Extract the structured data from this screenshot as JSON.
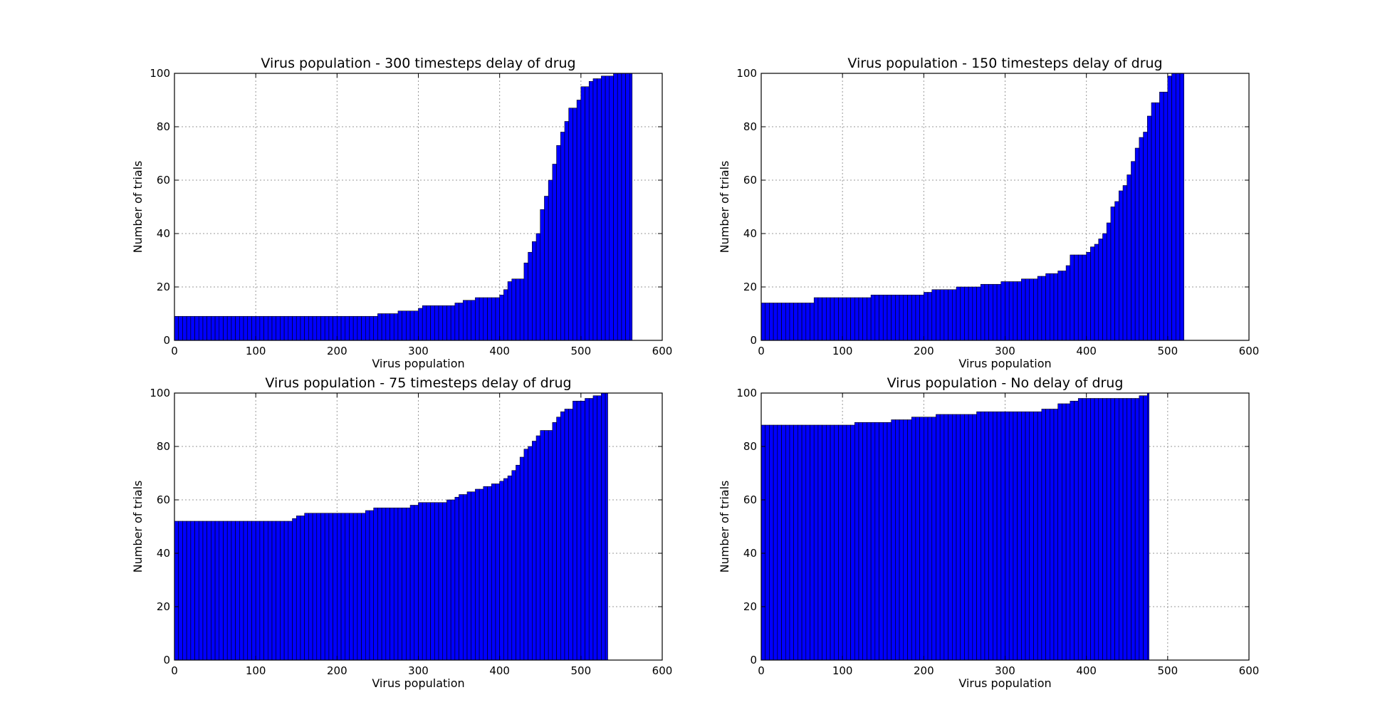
{
  "colors": {
    "bar_fill": "#0000ff",
    "bar_edge": "#000000",
    "grid": "#999999",
    "background": "#ffffff"
  },
  "chart_data": [
    {
      "type": "bar",
      "title": "Virus population - 300 timesteps delay of drug",
      "xlabel": "Virus population",
      "ylabel": "Number of trials",
      "xlim": [
        0,
        600
      ],
      "ylim": [
        0,
        100
      ],
      "xticks": [
        0,
        100,
        200,
        300,
        400,
        500,
        600
      ],
      "yticks": [
        0,
        20,
        40,
        60,
        80,
        100
      ],
      "grid": true,
      "steps": [
        [
          0,
          9
        ],
        [
          250,
          10
        ],
        [
          275,
          11
        ],
        [
          298,
          12
        ],
        [
          305,
          13
        ],
        [
          345,
          14
        ],
        [
          355,
          15
        ],
        [
          370,
          16
        ],
        [
          398,
          17
        ],
        [
          403,
          19
        ],
        [
          408,
          22
        ],
        [
          413,
          23
        ],
        [
          430,
          29
        ],
        [
          435,
          33
        ],
        [
          440,
          37
        ],
        [
          445,
          40
        ],
        [
          450,
          49
        ],
        [
          455,
          54
        ],
        [
          460,
          60
        ],
        [
          465,
          66
        ],
        [
          470,
          73
        ],
        [
          475,
          78
        ],
        [
          480,
          82
        ],
        [
          485,
          87
        ],
        [
          495,
          90
        ],
        [
          500,
          95
        ],
        [
          510,
          97
        ],
        [
          515,
          98
        ],
        [
          525,
          99
        ],
        [
          540,
          100
        ]
      ],
      "x_end": 563
    },
    {
      "type": "bar",
      "title": "Virus population - 150 timesteps delay of drug",
      "xlabel": "Virus population",
      "ylabel": "Number of trials",
      "xlim": [
        0,
        600
      ],
      "ylim": [
        0,
        100
      ],
      "xticks": [
        0,
        100,
        200,
        300,
        400,
        500,
        600
      ],
      "yticks": [
        0,
        20,
        40,
        60,
        80,
        100
      ],
      "grid": true,
      "steps": [
        [
          0,
          14
        ],
        [
          62,
          16
        ],
        [
          135,
          17
        ],
        [
          197,
          18
        ],
        [
          207,
          19
        ],
        [
          240,
          20
        ],
        [
          270,
          21
        ],
        [
          295,
          22
        ],
        [
          320,
          23
        ],
        [
          340,
          24
        ],
        [
          350,
          25
        ],
        [
          365,
          26
        ],
        [
          375,
          28
        ],
        [
          380,
          32
        ],
        [
          400,
          33
        ],
        [
          405,
          35
        ],
        [
          410,
          36
        ],
        [
          415,
          38
        ],
        [
          420,
          40
        ],
        [
          425,
          44
        ],
        [
          430,
          50
        ],
        [
          435,
          52
        ],
        [
          440,
          56
        ],
        [
          445,
          58
        ],
        [
          450,
          62
        ],
        [
          455,
          67
        ],
        [
          460,
          72
        ],
        [
          465,
          76
        ],
        [
          470,
          78
        ],
        [
          475,
          84
        ],
        [
          480,
          89
        ],
        [
          490,
          93
        ],
        [
          500,
          99
        ],
        [
          505,
          100
        ]
      ],
      "x_end": 520
    },
    {
      "type": "bar",
      "title": "Virus population - 75 timesteps delay of drug",
      "xlabel": "Virus population",
      "ylabel": "Number of trials",
      "xlim": [
        0,
        600
      ],
      "ylim": [
        0,
        100
      ],
      "xticks": [
        0,
        100,
        200,
        300,
        400,
        500,
        600
      ],
      "yticks": [
        0,
        20,
        40,
        60,
        80,
        100
      ],
      "grid": true,
      "steps": [
        [
          0,
          52
        ],
        [
          143,
          53
        ],
        [
          148,
          54
        ],
        [
          158,
          55
        ],
        [
          235,
          56
        ],
        [
          245,
          57
        ],
        [
          287,
          58
        ],
        [
          297,
          59
        ],
        [
          335,
          60
        ],
        [
          345,
          61
        ],
        [
          350,
          62
        ],
        [
          360,
          63
        ],
        [
          370,
          64
        ],
        [
          378,
          65
        ],
        [
          388,
          66
        ],
        [
          398,
          67
        ],
        [
          403,
          68
        ],
        [
          408,
          69
        ],
        [
          413,
          71
        ],
        [
          418,
          73
        ],
        [
          423,
          76
        ],
        [
          428,
          79
        ],
        [
          433,
          80
        ],
        [
          438,
          82
        ],
        [
          443,
          84
        ],
        [
          448,
          86
        ],
        [
          463,
          89
        ],
        [
          468,
          91
        ],
        [
          473,
          93
        ],
        [
          478,
          94
        ],
        [
          488,
          97
        ],
        [
          503,
          98
        ],
        [
          513,
          99
        ],
        [
          523,
          100
        ]
      ],
      "x_end": 533
    },
    {
      "type": "bar",
      "title": "Virus population - No delay of drug",
      "xlabel": "Virus population",
      "ylabel": "Number of trials",
      "xlim": [
        0,
        600
      ],
      "ylim": [
        0,
        100
      ],
      "xticks": [
        0,
        100,
        200,
        300,
        400,
        500,
        600
      ],
      "yticks": [
        0,
        20,
        40,
        60,
        80,
        100
      ],
      "grid": true,
      "steps": [
        [
          0,
          88
        ],
        [
          115,
          89
        ],
        [
          158,
          90
        ],
        [
          183,
          91
        ],
        [
          215,
          92
        ],
        [
          262,
          93
        ],
        [
          345,
          94
        ],
        [
          365,
          96
        ],
        [
          380,
          97
        ],
        [
          390,
          98
        ],
        [
          465,
          99
        ],
        [
          472,
          100
        ]
      ],
      "x_end": 477
    }
  ]
}
